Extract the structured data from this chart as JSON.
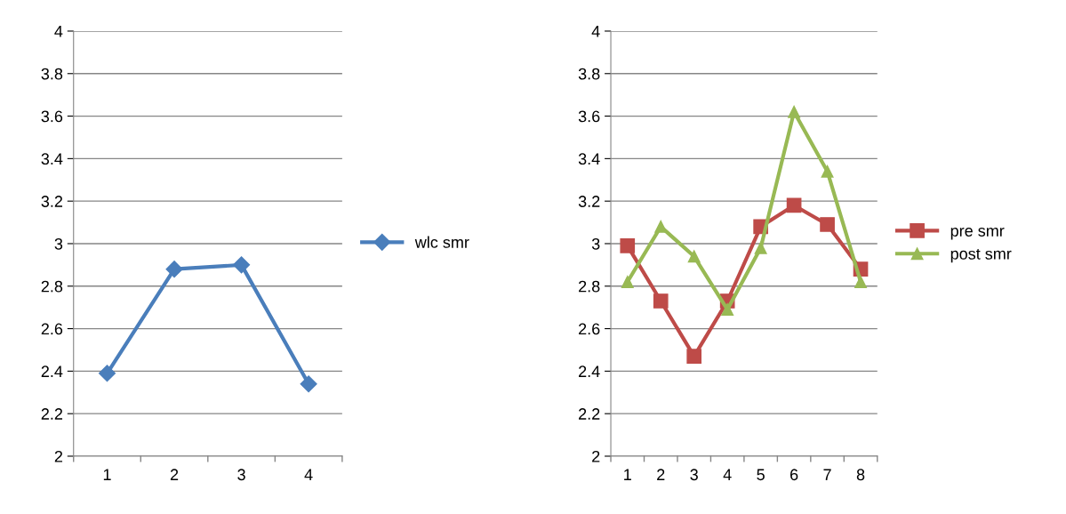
{
  "chart_data": [
    {
      "type": "line",
      "categories": [
        "1",
        "2",
        "3",
        "4"
      ],
      "ylim": [
        2,
        4
      ],
      "yticks": [
        2,
        2.2,
        2.4,
        2.6,
        2.8,
        3,
        3.2,
        3.4,
        3.6,
        3.8,
        4
      ],
      "grid": "y",
      "legend": "right",
      "series": [
        {
          "name": "wlc smr",
          "color": "#4a7ebb",
          "marker": "diamond",
          "values": [
            2.39,
            2.88,
            2.9,
            2.34
          ]
        }
      ]
    },
    {
      "type": "line",
      "categories": [
        "1",
        "2",
        "3",
        "4",
        "5",
        "6",
        "7",
        "8"
      ],
      "ylim": [
        2,
        4
      ],
      "yticks": [
        2,
        2.2,
        2.4,
        2.6,
        2.8,
        3,
        3.2,
        3.4,
        3.6,
        3.8,
        4
      ],
      "grid": "y",
      "legend": "right",
      "series": [
        {
          "name": "pre smr",
          "color": "#be4b48",
          "marker": "square",
          "values": [
            2.99,
            2.73,
            2.47,
            2.73,
            3.08,
            3.18,
            3.09,
            2.88
          ]
        },
        {
          "name": "post smr",
          "color": "#98b954",
          "marker": "triangle",
          "values": [
            2.82,
            3.08,
            2.94,
            2.69,
            2.98,
            3.62,
            3.34,
            2.82
          ]
        }
      ]
    }
  ]
}
